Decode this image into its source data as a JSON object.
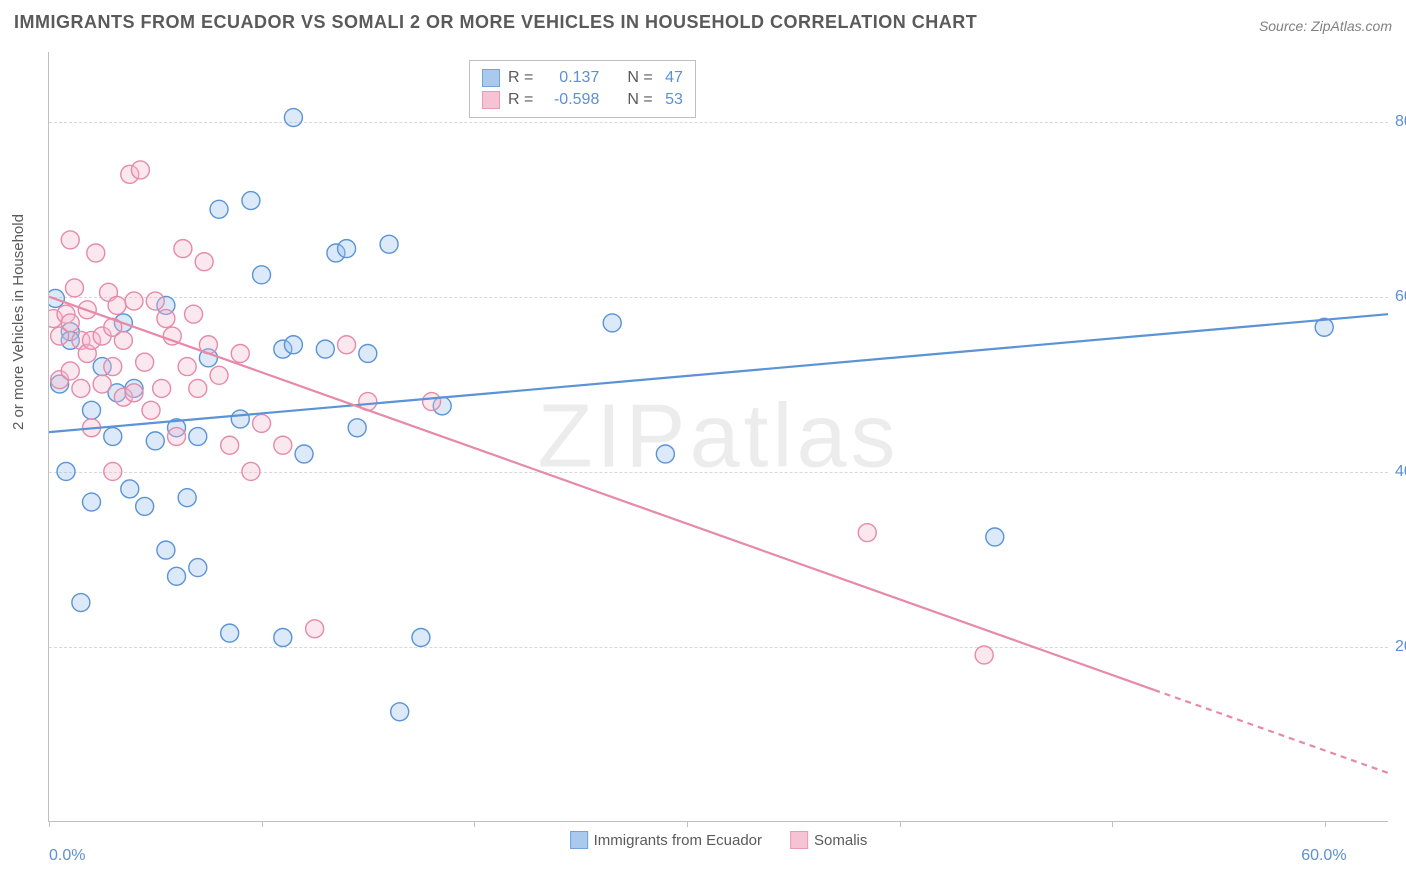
{
  "title": "IMMIGRANTS FROM ECUADOR VS SOMALI 2 OR MORE VEHICLES IN HOUSEHOLD CORRELATION CHART",
  "source_label": "Source: ZipAtlas.com",
  "y_axis_title": "2 or more Vehicles in Household",
  "watermark": "ZIPatlas",
  "chart": {
    "type": "scatter",
    "background_color": "#ffffff",
    "grid_color": "#d8d8d8",
    "axis_color": "#bfbfbf",
    "tick_label_color": "#5b8fd6",
    "x_range": [
      0,
      63
    ],
    "y_range": [
      0,
      88
    ],
    "y_ticks": [
      20,
      40,
      60,
      80
    ],
    "y_tick_labels": [
      "20.0%",
      "40.0%",
      "60.0%",
      "80.0%"
    ],
    "x_ticks": [
      0,
      10,
      20,
      30,
      40,
      50,
      60
    ],
    "x_tick_labels": [
      "0.0%",
      "",
      "",
      "",
      "",
      "",
      "60.0%"
    ],
    "marker_radius": 9,
    "marker_stroke_width": 1.4,
    "marker_fill_opacity": 0.35,
    "trend_line_width": 2.2
  },
  "series": [
    {
      "id": "ecuador",
      "label": "Immigrants from Ecuador",
      "color_stroke": "#5a93d6",
      "color_fill": "#9bc0ea",
      "R": "0.137",
      "N": "47",
      "trend": {
        "x1": 0,
        "y1": 44.5,
        "x2": 63,
        "y2": 58.0
      },
      "points": [
        [
          0.3,
          59.8
        ],
        [
          0.5,
          50.0
        ],
        [
          0.8,
          40.0
        ],
        [
          1.0,
          56.0
        ],
        [
          1.0,
          55.0
        ],
        [
          1.5,
          25.0
        ],
        [
          2.0,
          47.0
        ],
        [
          2.0,
          36.5
        ],
        [
          2.5,
          52.0
        ],
        [
          3.0,
          44.0
        ],
        [
          3.2,
          49.0
        ],
        [
          3.5,
          57.0
        ],
        [
          3.8,
          38.0
        ],
        [
          4.0,
          49.5
        ],
        [
          4.5,
          36.0
        ],
        [
          5.0,
          43.5
        ],
        [
          5.5,
          59.0
        ],
        [
          5.5,
          31.0
        ],
        [
          6.0,
          45.0
        ],
        [
          6.0,
          28.0
        ],
        [
          6.5,
          37.0
        ],
        [
          7.0,
          44.0
        ],
        [
          7.0,
          29.0
        ],
        [
          7.5,
          53.0
        ],
        [
          8.0,
          70.0
        ],
        [
          8.5,
          21.5
        ],
        [
          9.0,
          46.0
        ],
        [
          9.5,
          71.0
        ],
        [
          10.0,
          62.5
        ],
        [
          11.0,
          54.0
        ],
        [
          11.0,
          21.0
        ],
        [
          11.5,
          54.5
        ],
        [
          11.5,
          80.5
        ],
        [
          12.0,
          42.0
        ],
        [
          13.0,
          54.0
        ],
        [
          13.5,
          65.0
        ],
        [
          14.0,
          65.5
        ],
        [
          14.5,
          45.0
        ],
        [
          15.0,
          53.5
        ],
        [
          16.0,
          66.0
        ],
        [
          16.5,
          12.5
        ],
        [
          17.5,
          21.0
        ],
        [
          18.5,
          47.5
        ],
        [
          26.5,
          57.0
        ],
        [
          29.0,
          42.0
        ],
        [
          60.0,
          56.5
        ],
        [
          44.5,
          32.5
        ]
      ]
    },
    {
      "id": "somali",
      "label": "Somalis",
      "color_stroke": "#e68aa8",
      "color_fill": "#f4b9cd",
      "R": "-0.598",
      "N": "53",
      "trend": {
        "x1": 0,
        "y1": 60.0,
        "x2": 52.0,
        "y2": 15.0
      },
      "trend_extrapolate": {
        "x1": 52.0,
        "y1": 15.0,
        "x2": 63.0,
        "y2": 5.5
      },
      "points": [
        [
          0.2,
          57.5
        ],
        [
          0.5,
          55.5
        ],
        [
          0.5,
          50.5
        ],
        [
          0.8,
          58.0
        ],
        [
          1.0,
          66.5
        ],
        [
          1.0,
          57.0
        ],
        [
          1.0,
          51.5
        ],
        [
          1.2,
          61.0
        ],
        [
          1.5,
          55.0
        ],
        [
          1.5,
          49.5
        ],
        [
          1.8,
          58.5
        ],
        [
          1.8,
          53.5
        ],
        [
          2.0,
          55.0
        ],
        [
          2.0,
          45.0
        ],
        [
          2.2,
          65.0
        ],
        [
          2.5,
          55.5
        ],
        [
          2.5,
          50.0
        ],
        [
          2.8,
          60.5
        ],
        [
          3.0,
          56.5
        ],
        [
          3.0,
          52.0
        ],
        [
          3.0,
          40.0
        ],
        [
          3.2,
          59.0
        ],
        [
          3.5,
          55.0
        ],
        [
          3.5,
          48.5
        ],
        [
          3.8,
          74.0
        ],
        [
          4.0,
          59.5
        ],
        [
          4.0,
          49.0
        ],
        [
          4.3,
          74.5
        ],
        [
          4.5,
          52.5
        ],
        [
          4.8,
          47.0
        ],
        [
          5.0,
          59.5
        ],
        [
          5.3,
          49.5
        ],
        [
          5.5,
          57.5
        ],
        [
          5.8,
          55.5
        ],
        [
          6.0,
          44.0
        ],
        [
          6.3,
          65.5
        ],
        [
          6.5,
          52.0
        ],
        [
          6.8,
          58.0
        ],
        [
          7.0,
          49.5
        ],
        [
          7.3,
          64.0
        ],
        [
          7.5,
          54.5
        ],
        [
          8.0,
          51.0
        ],
        [
          8.5,
          43.0
        ],
        [
          9.0,
          53.5
        ],
        [
          9.5,
          40.0
        ],
        [
          10.0,
          45.5
        ],
        [
          11.0,
          43.0
        ],
        [
          12.5,
          22.0
        ],
        [
          14.0,
          54.5
        ],
        [
          15.0,
          48.0
        ],
        [
          18.0,
          48.0
        ],
        [
          38.5,
          33.0
        ],
        [
          44.0,
          19.0
        ]
      ]
    }
  ],
  "legend_top": {
    "r_label": "R =",
    "n_label": "N ="
  }
}
